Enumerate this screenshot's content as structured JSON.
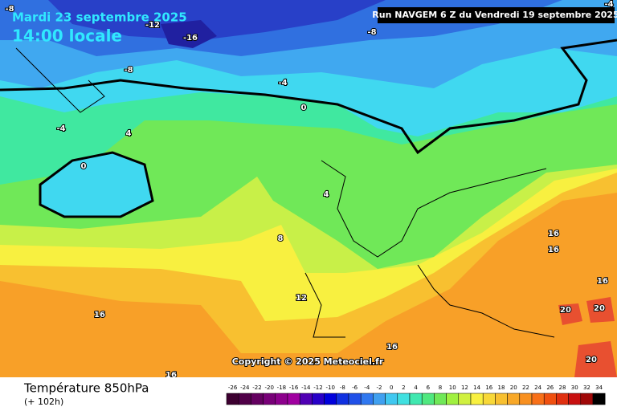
{
  "header": {
    "date": "Mardi 23 septembre 2025",
    "time": "14:00 locale",
    "run": "Run NAVGEM 6 Z du Vendredi 19 septembre 2025"
  },
  "footer": {
    "title": "Température 850hPa",
    "lead": "(+ 102h)",
    "copyright": "Copyright © 2025 Meteociel.fr"
  },
  "legend": {
    "values": [
      -26,
      -24,
      -22,
      -20,
      -18,
      -16,
      -14,
      -12,
      -10,
      -8,
      -6,
      -4,
      -2,
      0,
      2,
      4,
      6,
      8,
      10,
      12,
      14,
      16,
      18,
      20,
      22,
      24,
      26,
      28,
      30,
      32,
      34
    ],
    "colors": [
      "#3c0030",
      "#500048",
      "#640060",
      "#780078",
      "#8c008c",
      "#a000a0",
      "#5000b4",
      "#2800c8",
      "#0000dc",
      "#1030e0",
      "#2050e8",
      "#3078f0",
      "#40a0f0",
      "#40c8f0",
      "#40e0e0",
      "#40e8b0",
      "#50e880",
      "#70e858",
      "#a0f040",
      "#d0f040",
      "#f8f040",
      "#f8d838",
      "#f8c030",
      "#f8a828",
      "#f89020",
      "#f87018",
      "#f05010",
      "#e03010",
      "#c81010",
      "#a00808",
      "#000000"
    ]
  },
  "contour_labels": [
    -8,
    -12,
    -16,
    -8,
    -8,
    -4,
    0,
    -4,
    4,
    0,
    4,
    8,
    12,
    16,
    16,
    16,
    16,
    16,
    16,
    20,
    20,
    20,
    -4
  ]
}
